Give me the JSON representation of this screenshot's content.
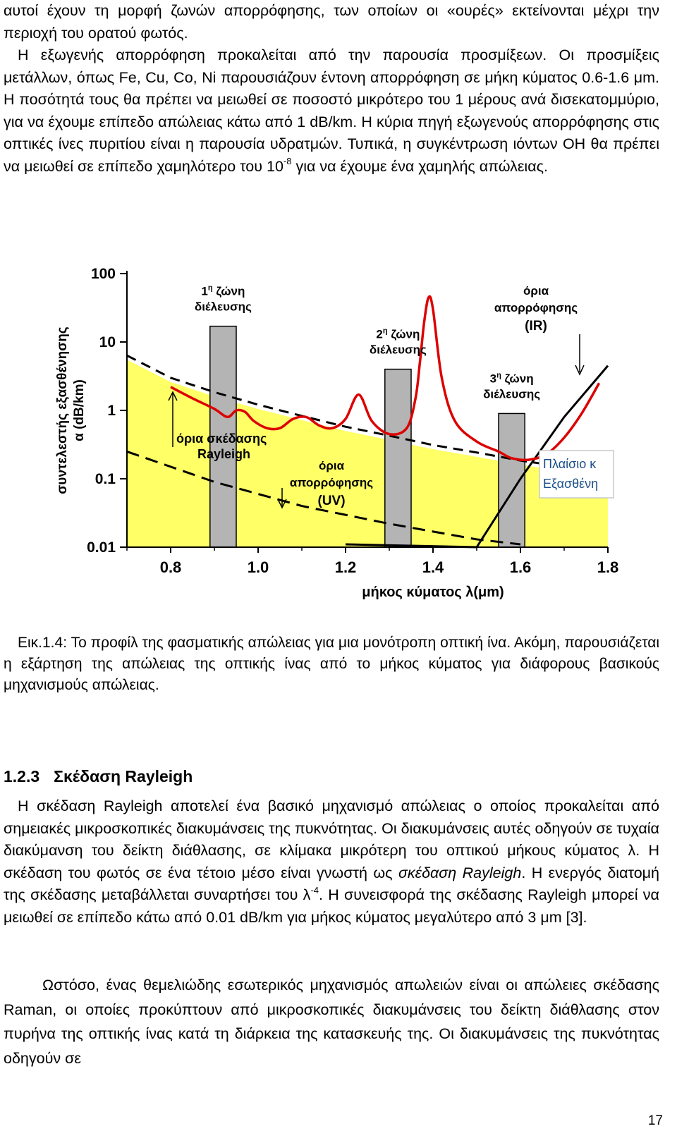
{
  "body": {
    "p1": "αυτοί έχουν τη μορφή ζωνών απορρόφησης, των οποίων οι «ουρές» εκτείνονται μέχρι την περιοχή του ορατού φωτός.",
    "p2": "Η εξωγενής απορρόφηση προκαλείται από την παρουσία προσμίξεων. Οι προσμίξεις μετάλλων, όπως Fe, Cu, Co, Ni παρουσιάζουν έντονη απορρόφηση σε μήκη κύματος 0.6-1.6 μm. Η ποσότητά τους θα πρέπει να μειωθεί σε ποσοστό μικρότερο του 1 μέρους ανά δισεκατομμύριο, για να έχουμε επίπεδο απώλειας κάτω από 1 dB/km. Η κύρια πηγή εξωγενούς απορρόφησης στις οπτικές ίνες πυριτίου είναι η παρουσία υδρατμών. Τυπικά, η συγκέντρωση ιόντων OH θα πρέπει να μειωθεί σε επίπεδο χαμηλότερο του 10",
    "p2_sup": "-8",
    "p2_end": " για να έχουμε ένα χαμηλής απώλειας."
  },
  "figure": {
    "caption": "Εικ.1.4: Το προφίλ της φασματικής απώλειας για μια μονότροπη οπτική ίνα. Ακόμη, παρουσιάζεται η εξάρτηση της απώλειας της οπτικής ίνας από το μήκος κύματος για διάφορους βασικούς μηχανισμούς απώλειας."
  },
  "section": {
    "number": "1.2.3",
    "title": "Σκέδαση Rayleigh",
    "p3_a": "Η σκέδαση Rayleigh αποτελεί ένα βασικό μηχανισμό απώλειας ο οποίος προκαλείται από σημειακές μικροσκοπικές διακυμάνσεις της πυκνότητας. Οι διακυμάνσεις αυτές οδηγούν σε τυχαία διακύμανση του δείκτη διάθλασης, σε κλίμακα μικρότερη του οπτικού μήκους κύματος λ. Η σκέδαση του φωτός σε ένα τέτοιο μέσο είναι γνωστή ως ",
    "p3_italic": "σκέδαση Rayleigh",
    "p3_b": ". Η ενεργός διατομή της σκέδασης μεταβάλλεται συναρτήσει του λ",
    "p3_sup": "-4",
    "p3_c": ". Η συνεισφορά της σκέδασης Rayleigh μπορεί να μειωθεί σε επίπεδο κάτω από 0.01 dB/km για μήκος κύματος μεγαλύτερο από 3 μm [3].",
    "p4": "Ωστόσο, ένας θεμελιώδης εσωτερικός μηχανισμός απωλειών είναι οι απώλειες σκέδασης Raman, οι οποίες προκύπτουν από μικροσκοπικές διακυμάνσεις του δείκτη διάθλασης στον πυρήνα της οπτικής ίνας κατά τη διάρκεια της κατασκευής της. Οι διακυμάνσεις της πυκνότητας οδηγούν σε"
  },
  "page_number": "17",
  "chart_data": {
    "type": "line",
    "xlabel": "μήκος κύματος λ(μm)",
    "ylabel_line1": "συντελεστής εξασθένησης",
    "ylabel_line2": "α (dB/km)",
    "x_ticks": [
      "0.8",
      "1.0",
      "1.2",
      "1.4",
      "1.6",
      "1.8"
    ],
    "y_ticks": [
      "0.01",
      "0.1",
      "1",
      "10",
      "100"
    ],
    "xlim": [
      0.7,
      1.8
    ],
    "ylim": [
      0.01,
      100
    ],
    "yscale": "log",
    "colors": {
      "fill": "#ffff66",
      "loss": "#dd0000",
      "band": "#b4b4b4",
      "limit": "#000000"
    },
    "series": [
      {
        "name": "",
        "kind": "measured_loss",
        "x": [
          0.8,
          0.85,
          0.9,
          0.93,
          0.95,
          0.97,
          0.99,
          1.02,
          1.05,
          1.08,
          1.11,
          1.14,
          1.17,
          1.2,
          1.23,
          1.26,
          1.3,
          1.34,
          1.36,
          1.37,
          1.38,
          1.39,
          1.4,
          1.42,
          1.45,
          1.5,
          1.55,
          1.58,
          1.62,
          1.66,
          1.7,
          1.74,
          1.78
        ],
        "y": [
          2.2,
          1.5,
          1.05,
          0.8,
          1.0,
          0.95,
          0.7,
          0.55,
          0.55,
          0.75,
          0.8,
          0.6,
          0.55,
          0.75,
          1.7,
          0.7,
          0.45,
          0.55,
          1.5,
          5.0,
          20,
          45,
          30,
          3.0,
          0.7,
          0.35,
          0.25,
          0.2,
          0.19,
          0.23,
          0.4,
          0.9,
          2.5
        ]
      },
      {
        "name": "",
        "kind": "rayleigh_fill",
        "x": [
          0.7,
          0.8,
          0.9,
          1.0,
          1.1,
          1.2,
          1.3,
          1.4,
          1.5,
          1.6,
          1.7,
          1.8
        ],
        "y": [
          5.5,
          2.6,
          1.6,
          1.05,
          0.72,
          0.5,
          0.37,
          0.27,
          0.21,
          0.16,
          0.13,
          0.1
        ]
      },
      {
        "name": "",
        "kind": "absorption_uv",
        "x": [
          0.7,
          0.9,
          1.1,
          1.3,
          1.5,
          1.6
        ],
        "y": [
          0.25,
          0.09,
          0.04,
          0.022,
          0.013,
          0.011
        ]
      },
      {
        "name": "",
        "kind": "absorption_ir",
        "x": [
          1.5,
          1.6,
          1.7,
          1.8
        ],
        "y": [
          0.01,
          0.1,
          0.8,
          4.5
        ]
      }
    ],
    "bands": [
      {
        "label_sup": "η",
        "label_pre": "1",
        "label_rest": " ζώνη",
        "label2": "διέλευσης",
        "x": [
          0.89,
          0.95
        ],
        "top": 17
      },
      {
        "label_sup": "η",
        "label_pre": "2",
        "label_rest": " ζώνη",
        "label2": "διέλευσης",
        "x": [
          1.29,
          1.35
        ],
        "top": 4
      },
      {
        "label_sup": "η",
        "label_pre": "3",
        "label_rest": " ζώνη",
        "label2": "διέλευσης",
        "x": [
          1.55,
          1.61
        ],
        "top": 0.9
      }
    ],
    "annotations": {
      "rayleigh_line1": "όρια σκέδασης",
      "rayleigh_line2": "Rayleigh",
      "uv_line1": "όρια",
      "uv_line2": "απορρόφησης",
      "uv_line3": "(UV)",
      "ir_line1": "όρια",
      "ir_line2": "απορρόφησης",
      "ir_line3": "(IR)",
      "box_line1": "Πλαίσιο κ",
      "box_line2": "Εξασθένη"
    }
  }
}
